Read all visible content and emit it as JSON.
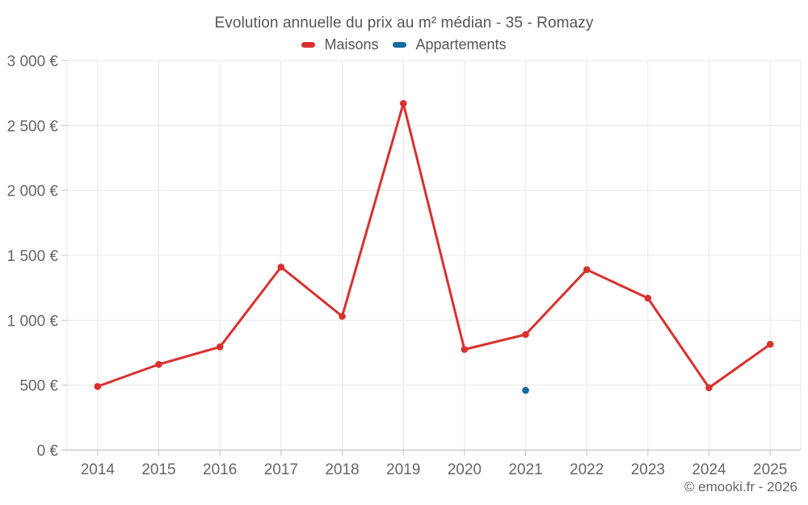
{
  "title": "Evolution annuelle du prix au m² médian - 35 - Romazy",
  "legend": [
    {
      "label": "Maisons",
      "color": "#d9302f"
    },
    {
      "label": "Appartements",
      "color": "#17699e"
    }
  ],
  "attribution": "© emooki.fr - 2026",
  "colors": {
    "grid": "#e7e7e7",
    "axis_line": "#b9b9b9",
    "tick": "#c4c4c4",
    "axis_text": "#666666",
    "title_text": "#555555",
    "background": "#ffffff"
  },
  "chart_data": {
    "type": "line",
    "title": "Evolution annuelle du prix au m² médian - 35 - Romazy",
    "categories": [
      "2014",
      "2015",
      "2016",
      "2017",
      "2018",
      "2019",
      "2020",
      "2021",
      "2022",
      "2023",
      "2024",
      "2025"
    ],
    "series": [
      {
        "name": "Maisons",
        "color": "#d9302f",
        "values": [
          490,
          660,
          795,
          1410,
          1030,
          2670,
          775,
          890,
          1390,
          1170,
          480,
          815
        ]
      },
      {
        "name": "Appartements",
        "color": "#17699e",
        "values": [
          null,
          null,
          null,
          null,
          null,
          null,
          null,
          460,
          null,
          null,
          null,
          null
        ]
      }
    ],
    "xlabel": "",
    "ylabel": "",
    "ylim": [
      0,
      3000
    ],
    "y_ticks": [
      0,
      500,
      1000,
      1500,
      2000,
      2500,
      3000
    ],
    "y_tick_labels": [
      "0 €",
      "500 €",
      "1 000 €",
      "1 500 €",
      "2 000 €",
      "2 500 €",
      "3 000 €"
    ],
    "grid": true,
    "legend_position": "top"
  }
}
